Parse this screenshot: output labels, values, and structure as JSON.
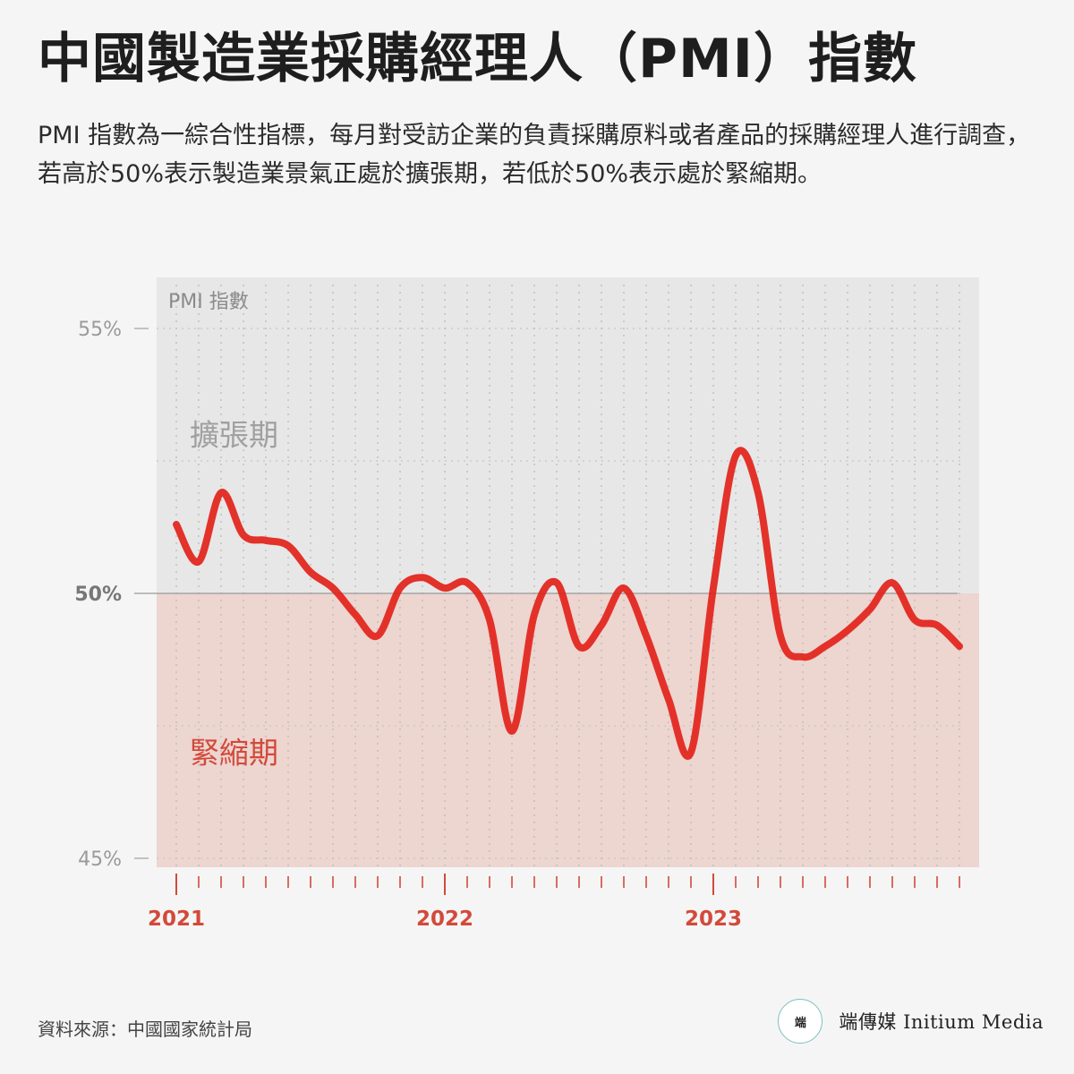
{
  "title": "中國製造業採購經理人（PMI）指數",
  "subtitle": "PMI 指數為一綜合性指標，每月對受訪企業的負責採購原料或者產品的採購經理人進行調查，若高於50%表示製造業景氣正處於擴張期，若低於50%表示處於緊縮期。",
  "source": "資料來源：中國國家統計局",
  "brand": {
    "logo_icon": "initium-logo-icon",
    "name": "端傳媒 Initium Media"
  },
  "colors": {
    "line": "#e2231a",
    "expansion_band": "#e7e7e7",
    "contraction_band": "#edd5d0",
    "year_label": "#d24a3a",
    "zone_label_expansion": "#a0a0a0",
    "zone_label_contraction": "#d24a3a"
  },
  "chart_data": {
    "type": "line",
    "ylabel": "PMI 指數",
    "ylim": [
      45,
      55.9
    ],
    "yticks": [
      {
        "value": 55,
        "label": "55%"
      },
      {
        "value": 50,
        "label": "50%"
      },
      {
        "value": 45,
        "label": "45%"
      }
    ],
    "x": [
      "2021-01",
      "2021-02",
      "2021-03",
      "2021-04",
      "2021-05",
      "2021-06",
      "2021-07",
      "2021-08",
      "2021-09",
      "2021-10",
      "2021-11",
      "2021-12",
      "2022-01",
      "2022-02",
      "2022-03",
      "2022-04",
      "2022-05",
      "2022-06",
      "2022-07",
      "2022-08",
      "2022-09",
      "2022-10",
      "2022-11",
      "2022-12",
      "2023-01",
      "2023-02",
      "2023-03",
      "2023-04",
      "2023-05",
      "2023-06",
      "2023-07",
      "2023-08",
      "2023-09",
      "2023-10",
      "2023-11",
      "2023-12"
    ],
    "year_labels": [
      {
        "x": "2021-01",
        "label": "2021"
      },
      {
        "x": "2022-01",
        "label": "2022"
      },
      {
        "x": "2023-01",
        "label": "2023"
      }
    ],
    "series": [
      {
        "values": [
          51.3,
          50.6,
          51.9,
          51.1,
          51.0,
          50.9,
          50.4,
          50.1,
          49.6,
          49.2,
          50.1,
          50.3,
          50.1,
          50.2,
          49.5,
          47.4,
          49.6,
          50.2,
          49.0,
          49.4,
          50.1,
          49.2,
          48.0,
          47.0,
          50.1,
          52.6,
          51.9,
          49.2,
          48.8,
          49.0,
          49.3,
          49.7,
          50.2,
          49.5,
          49.4,
          49.0
        ]
      }
    ],
    "zones": [
      {
        "label": "擴張期",
        "value": 53.0
      },
      {
        "label": "緊縮期",
        "value": 47.0
      }
    ],
    "reference_line": 50,
    "grid": true
  }
}
